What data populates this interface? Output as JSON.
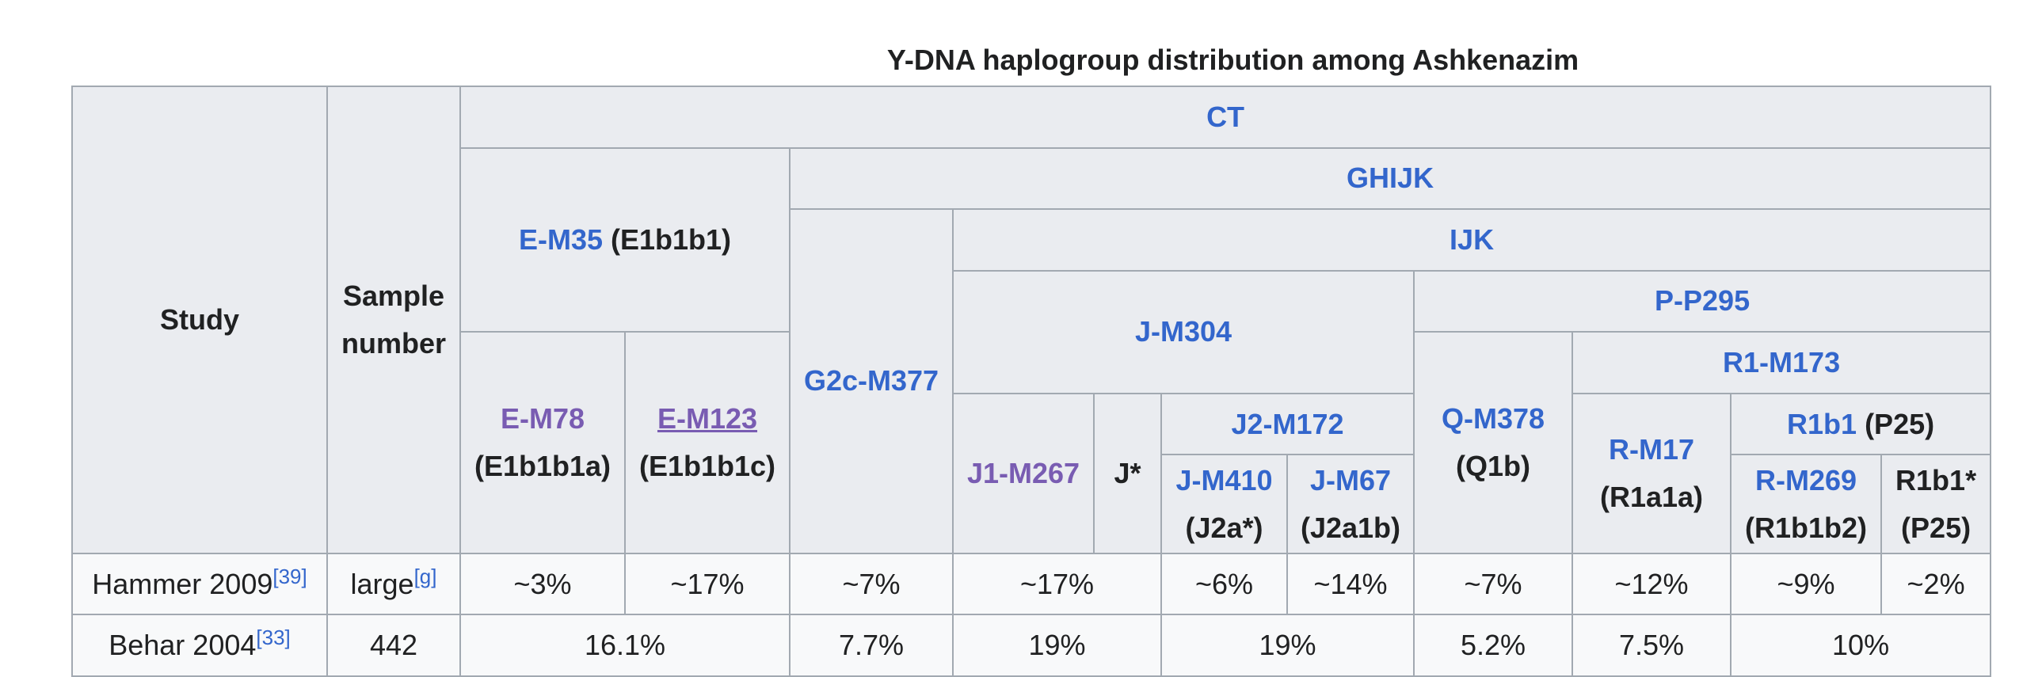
{
  "caption": "Y-DNA haplogroup distribution among Ashkenazim",
  "headers": {
    "study": "Study",
    "sample_number": "Sample number",
    "ct": "CT",
    "ghijk": "GHIJK",
    "e_m35": {
      "link": "E-M35",
      "suffix": "(E1b1b1)"
    },
    "ijk": "IJK",
    "g2c": "G2c-M377",
    "j_m304": "J-M304",
    "p_p295": "P-P295",
    "e_m78": {
      "link": "E-M78",
      "suffix": "(E1b1b1a)"
    },
    "e_m123": {
      "link": "E-M123",
      "suffix": "(E1b1b1c)"
    },
    "q_m378": {
      "link": "Q-M378",
      "suffix": "(Q1b)"
    },
    "r1_m173": "R1-M173",
    "j2_m172": "J2-M172",
    "r_m17": {
      "link": "R-M17",
      "suffix": "(R1a1a)"
    },
    "r1b1": {
      "link": "R1b1",
      "suffix": "(P25)"
    },
    "j1_m267": "J1-M267",
    "j_star": "J*",
    "j_m410": {
      "link": "J-M410",
      "suffix": "(J2a*)"
    },
    "j_m67": {
      "link": "J-M67",
      "suffix": "(J2a1b)"
    },
    "r_m269": {
      "link": "R-M269",
      "suffix": "(R1b1b2)"
    },
    "r1b1_star": {
      "text": "R1b1*",
      "suffix": "(P25)"
    }
  },
  "rows": [
    {
      "study": "Hammer 2009",
      "ref": "[39]",
      "sample": "large",
      "sample_note": "[g]",
      "values": [
        "~3%",
        "~17%",
        "~7%",
        "~17%",
        "~6%",
        "~14%",
        "~7%",
        "~12%",
        "~9%",
        "~2%"
      ]
    },
    {
      "study": "Behar 2004",
      "ref": "[33]",
      "sample": "442",
      "values": [
        "16.1%",
        "7.7%",
        "19%",
        "19%",
        "5.2%",
        "7.5%",
        "10%"
      ]
    }
  ]
}
